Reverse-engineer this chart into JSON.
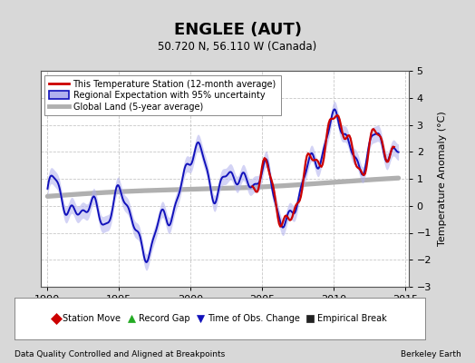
{
  "title": "ENGLEE (AUT)",
  "subtitle": "50.720 N, 56.110 W (Canada)",
  "ylabel": "Temperature Anomaly (°C)",
  "xlabel_left": "Data Quality Controlled and Aligned at Breakpoints",
  "xlabel_right": "Berkeley Earth",
  "xlim": [
    1989.5,
    2015.2
  ],
  "ylim": [
    -3,
    5
  ],
  "yticks": [
    -3,
    -2,
    -1,
    0,
    1,
    2,
    3,
    4,
    5
  ],
  "xticks": [
    1990,
    1995,
    2000,
    2005,
    2010,
    2015
  ],
  "bg_color": "#d8d8d8",
  "plot_bg": "#ffffff",
  "grid_color": "#c8c8c8",
  "regional_line_color": "#1111bb",
  "regional_fill_color": "#b0b0ee",
  "station_color": "#cc0000",
  "global_color": "#b0b0b0",
  "legend1": [
    "This Temperature Station (12-month average)",
    "Regional Expectation with 95% uncertainty",
    "Global Land (5-year average)"
  ],
  "legend2_labels": [
    "Station Move",
    "Record Gap",
    "Time of Obs. Change",
    "Empirical Break"
  ],
  "legend2_markers": [
    "D",
    "^",
    "v",
    "s"
  ],
  "legend2_colors": [
    "#cc0000",
    "#22aa22",
    "#1111bb",
    "#222222"
  ]
}
